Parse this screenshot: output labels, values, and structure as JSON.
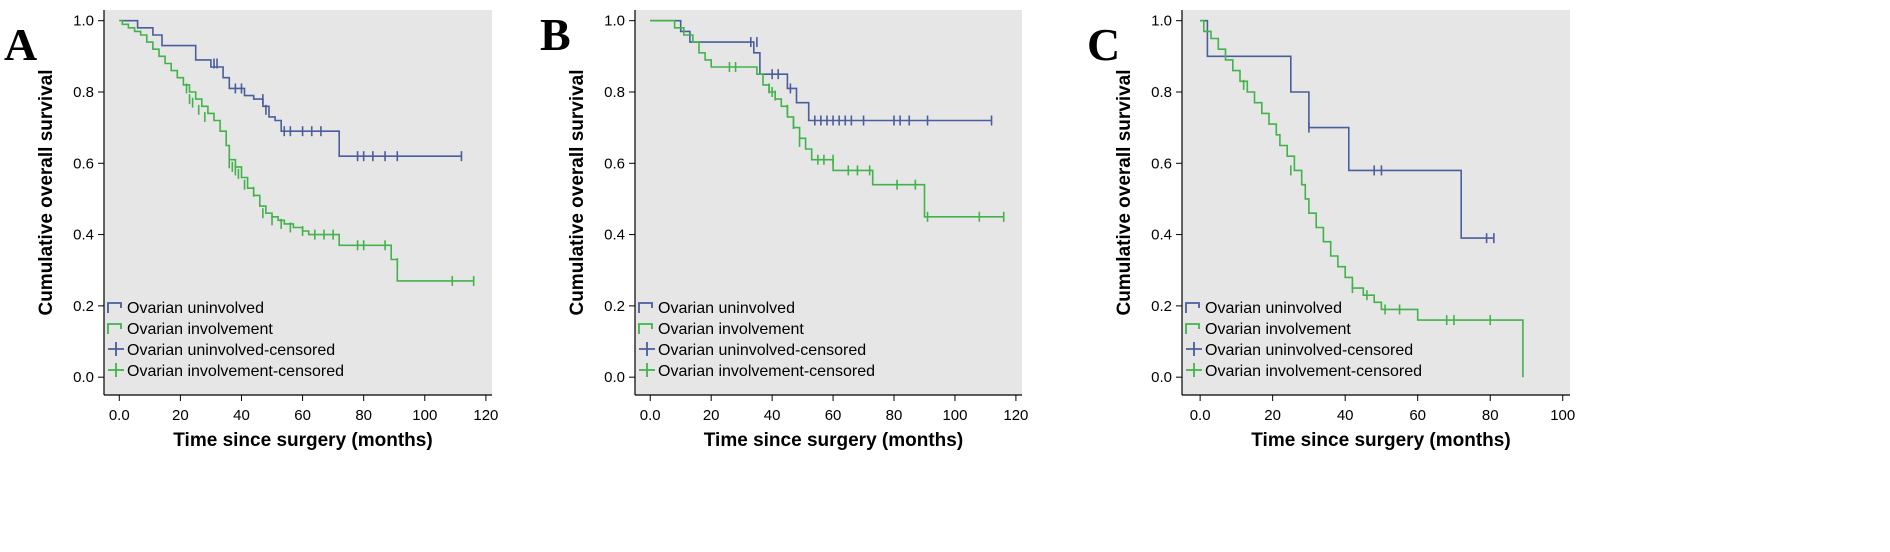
{
  "colors": {
    "uninvolved": "#4a5d9c",
    "involvement": "#41b34a",
    "plot_background": "#e6e6e6",
    "axis": "#000000"
  },
  "chart_data": [
    {
      "panel": "A",
      "type": "line",
      "xlabel": "Time since surgery (months)",
      "ylabel": "Cumulative overall survival",
      "xlim": [
        -5,
        122
      ],
      "ylim": [
        -0.05,
        1.03
      ],
      "xticks": [
        0,
        20,
        40,
        60,
        80,
        100,
        120
      ],
      "yticks": [
        0.0,
        0.2,
        0.4,
        0.6,
        0.8,
        1.0
      ],
      "legend_position": "bottom-left",
      "legend": [
        "Ovarian uninvolved",
        "Ovarian involvement",
        "Ovarian uninvolved-censored",
        "Ovarian involvement-censored"
      ],
      "series": [
        {
          "name": "Ovarian uninvolved",
          "color_key": "uninvolved",
          "steps": [
            [
              0,
              1.0
            ],
            [
              6,
              0.98
            ],
            [
              11,
              0.96
            ],
            [
              14,
              0.93
            ],
            [
              25,
              0.89
            ],
            [
              30,
              0.87
            ],
            [
              34,
              0.84
            ],
            [
              36,
              0.81
            ],
            [
              41,
              0.79
            ],
            [
              44,
              0.78
            ],
            [
              47,
              0.76
            ],
            [
              49,
              0.73
            ],
            [
              51,
              0.72
            ],
            [
              53,
              0.69
            ],
            [
              72,
              0.62
            ],
            [
              112,
              0.62
            ]
          ],
          "censored": [
            [
              31,
              0.88
            ],
            [
              32,
              0.88
            ],
            [
              38,
              0.81
            ],
            [
              40,
              0.81
            ],
            [
              47,
              0.78
            ],
            [
              48,
              0.75
            ],
            [
              54,
              0.69
            ],
            [
              56,
              0.69
            ],
            [
              60,
              0.69
            ],
            [
              63,
              0.69
            ],
            [
              66,
              0.69
            ],
            [
              78,
              0.62
            ],
            [
              80,
              0.62
            ],
            [
              83,
              0.62
            ],
            [
              87,
              0.62
            ],
            [
              91,
              0.62
            ],
            [
              112,
              0.62
            ]
          ]
        },
        {
          "name": "Ovarian involvement",
          "color_key": "involvement",
          "steps": [
            [
              0,
              1.0
            ],
            [
              1,
              0.99
            ],
            [
              3,
              0.98
            ],
            [
              5,
              0.97
            ],
            [
              7,
              0.96
            ],
            [
              9,
              0.94
            ],
            [
              11,
              0.92
            ],
            [
              13,
              0.9
            ],
            [
              15,
              0.88
            ],
            [
              17,
              0.86
            ],
            [
              19,
              0.84
            ],
            [
              21,
              0.82
            ],
            [
              23,
              0.8
            ],
            [
              25,
              0.78
            ],
            [
              27,
              0.76
            ],
            [
              29,
              0.74
            ],
            [
              31,
              0.72
            ],
            [
              33,
              0.69
            ],
            [
              35,
              0.65
            ],
            [
              36,
              0.61
            ],
            [
              38,
              0.59
            ],
            [
              40,
              0.56
            ],
            [
              42,
              0.53
            ],
            [
              44,
              0.51
            ],
            [
              46,
              0.48
            ],
            [
              48,
              0.46
            ],
            [
              50,
              0.45
            ],
            [
              52,
              0.44
            ],
            [
              54,
              0.43
            ],
            [
              57,
              0.42
            ],
            [
              60,
              0.41
            ],
            [
              62,
              0.4
            ],
            [
              72,
              0.37
            ],
            [
              87,
              0.37
            ],
            [
              89,
              0.33
            ],
            [
              91,
              0.27
            ],
            [
              116,
              0.27
            ]
          ],
          "censored": [
            [
              22,
              0.81
            ],
            [
              23,
              0.78
            ],
            [
              24,
              0.77
            ],
            [
              26,
              0.75
            ],
            [
              28,
              0.73
            ],
            [
              36,
              0.6
            ],
            [
              37,
              0.59
            ],
            [
              38,
              0.58
            ],
            [
              39,
              0.57
            ],
            [
              41,
              0.54
            ],
            [
              44,
              0.52
            ],
            [
              47,
              0.46
            ],
            [
              50,
              0.44
            ],
            [
              53,
              0.43
            ],
            [
              56,
              0.42
            ],
            [
              60,
              0.41
            ],
            [
              64,
              0.4
            ],
            [
              67,
              0.4
            ],
            [
              70,
              0.4
            ],
            [
              78,
              0.37
            ],
            [
              80,
              0.37
            ],
            [
              87,
              0.37
            ],
            [
              91,
              0.32
            ],
            [
              109,
              0.27
            ],
            [
              116,
              0.27
            ]
          ]
        }
      ]
    },
    {
      "panel": "B",
      "type": "line",
      "xlabel": "Time since surgery (months)",
      "ylabel": "Cumulative overall survival",
      "xlim": [
        -5,
        122
      ],
      "ylim": [
        -0.05,
        1.03
      ],
      "xticks": [
        0,
        20,
        40,
        60,
        80,
        100,
        120
      ],
      "yticks": [
        0.0,
        0.2,
        0.4,
        0.6,
        0.8,
        1.0
      ],
      "legend_position": "bottom-left",
      "legend": [
        "Ovarian uninvolved",
        "Ovarian involvement",
        "Ovarian uninvolved-censored",
        "Ovarian involvement-censored"
      ],
      "series": [
        {
          "name": "Ovarian uninvolved",
          "color_key": "uninvolved",
          "steps": [
            [
              0,
              1.0
            ],
            [
              10,
              0.97
            ],
            [
              13,
              0.94
            ],
            [
              34,
              0.91
            ],
            [
              36,
              0.85
            ],
            [
              45,
              0.81
            ],
            [
              48,
              0.77
            ],
            [
              52,
              0.72
            ],
            [
              112,
              0.72
            ]
          ],
          "censored": [
            [
              33,
              0.94
            ],
            [
              35,
              0.94
            ],
            [
              40,
              0.85
            ],
            [
              42,
              0.85
            ],
            [
              46,
              0.81
            ],
            [
              54,
              0.72
            ],
            [
              56,
              0.72
            ],
            [
              58,
              0.72
            ],
            [
              60,
              0.72
            ],
            [
              62,
              0.72
            ],
            [
              64,
              0.72
            ],
            [
              66,
              0.72
            ],
            [
              70,
              0.72
            ],
            [
              80,
              0.72
            ],
            [
              82,
              0.72
            ],
            [
              85,
              0.72
            ],
            [
              91,
              0.72
            ],
            [
              112,
              0.72
            ]
          ]
        },
        {
          "name": "Ovarian involvement",
          "color_key": "involvement",
          "steps": [
            [
              0,
              1.0
            ],
            [
              8,
              0.98
            ],
            [
              11,
              0.96
            ],
            [
              14,
              0.94
            ],
            [
              16,
              0.91
            ],
            [
              18,
              0.89
            ],
            [
              20,
              0.87
            ],
            [
              35,
              0.85
            ],
            [
              37,
              0.82
            ],
            [
              39,
              0.8
            ],
            [
              41,
              0.78
            ],
            [
              43,
              0.76
            ],
            [
              45,
              0.73
            ],
            [
              47,
              0.7
            ],
            [
              49,
              0.67
            ],
            [
              51,
              0.64
            ],
            [
              53,
              0.61
            ],
            [
              60,
              0.58
            ],
            [
              73,
              0.54
            ],
            [
              90,
              0.45
            ],
            [
              116,
              0.45
            ]
          ],
          "censored": [
            [
              26,
              0.87
            ],
            [
              28,
              0.87
            ],
            [
              39,
              0.81
            ],
            [
              40,
              0.8
            ],
            [
              41,
              0.79
            ],
            [
              45,
              0.75
            ],
            [
              47,
              0.71
            ],
            [
              49,
              0.66
            ],
            [
              55,
              0.61
            ],
            [
              57,
              0.61
            ],
            [
              60,
              0.61
            ],
            [
              65,
              0.58
            ],
            [
              68,
              0.58
            ],
            [
              72,
              0.58
            ],
            [
              81,
              0.54
            ],
            [
              87,
              0.54
            ],
            [
              91,
              0.45
            ],
            [
              108,
              0.45
            ],
            [
              116,
              0.45
            ]
          ]
        }
      ]
    },
    {
      "panel": "C",
      "type": "line",
      "xlabel": "Time since surgery (months)",
      "ylabel": "Cumulative overall survival",
      "xlim": [
        -5,
        102
      ],
      "ylim": [
        -0.05,
        1.03
      ],
      "xticks": [
        0,
        20,
        40,
        60,
        80,
        100
      ],
      "yticks": [
        0.0,
        0.2,
        0.4,
        0.6,
        0.8,
        1.0
      ],
      "legend_position": "bottom-left",
      "legend": [
        "Ovarian uninvolved",
        "Ovarian involvement",
        "Ovarian uninvolved-censored",
        "Ovarian involvement-censored"
      ],
      "series": [
        {
          "name": "Ovarian uninvolved",
          "color_key": "uninvolved",
          "steps": [
            [
              0,
              1.0
            ],
            [
              2,
              0.9
            ],
            [
              25,
              0.8
            ],
            [
              30,
              0.7
            ],
            [
              41,
              0.58
            ],
            [
              72,
              0.39
            ],
            [
              81,
              0.39
            ]
          ],
          "censored": [
            [
              30,
              0.7
            ],
            [
              48,
              0.58
            ],
            [
              50,
              0.58
            ],
            [
              79,
              0.39
            ],
            [
              81,
              0.39
            ]
          ]
        },
        {
          "name": "Ovarian involvement",
          "color_key": "involvement",
          "steps": [
            [
              0,
              1.0
            ],
            [
              1,
              0.97
            ],
            [
              3,
              0.95
            ],
            [
              5,
              0.92
            ],
            [
              7,
              0.89
            ],
            [
              9,
              0.86
            ],
            [
              11,
              0.83
            ],
            [
              13,
              0.8
            ],
            [
              15,
              0.77
            ],
            [
              17,
              0.74
            ],
            [
              19,
              0.71
            ],
            [
              21,
              0.68
            ],
            [
              22,
              0.65
            ],
            [
              24,
              0.62
            ],
            [
              26,
              0.58
            ],
            [
              28,
              0.54
            ],
            [
              29,
              0.5
            ],
            [
              30,
              0.46
            ],
            [
              32,
              0.42
            ],
            [
              34,
              0.38
            ],
            [
              36,
              0.34
            ],
            [
              38,
              0.31
            ],
            [
              40,
              0.28
            ],
            [
              42,
              0.25
            ],
            [
              45,
              0.23
            ],
            [
              48,
              0.21
            ],
            [
              50,
              0.19
            ],
            [
              60,
              0.16
            ],
            [
              89,
              0.16
            ],
            [
              89,
              0.0
            ]
          ],
          "censored": [
            [
              12,
              0.82
            ],
            [
              25,
              0.58
            ],
            [
              42,
              0.25
            ],
            [
              46,
              0.23
            ],
            [
              51,
              0.19
            ],
            [
              55,
              0.19
            ],
            [
              68,
              0.16
            ],
            [
              70,
              0.16
            ],
            [
              80,
              0.16
            ]
          ]
        }
      ]
    }
  ]
}
